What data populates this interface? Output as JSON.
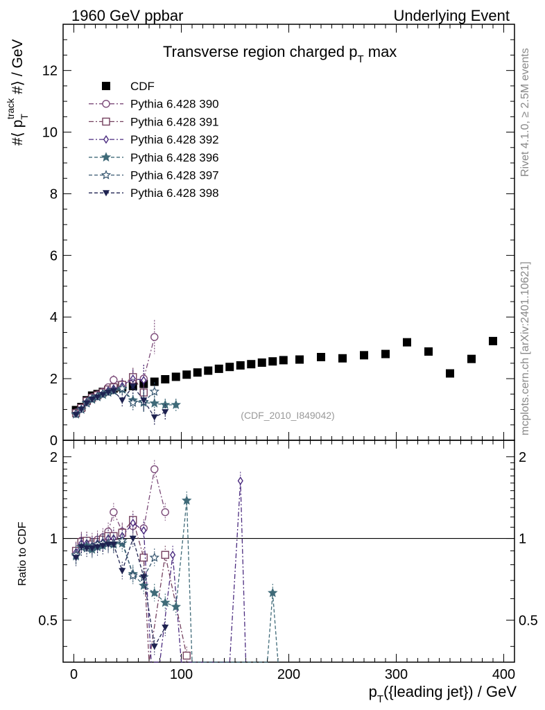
{
  "header": {
    "left": "1960 GeV ppbar",
    "right": "Underlying Event"
  },
  "side_text": {
    "rivet": "Rivet 4.1.0, ≥ 2.5M events",
    "mcplots": "mcplots.cern.ch [arXiv:2401.10621]"
  },
  "colors": {
    "cdf": "#000000",
    "p390": "#7b4a78",
    "p391": "#74405e",
    "p392": "#4a2a7e",
    "p396": "#3f6a78",
    "p397": "#34546e",
    "p398": "#1e2250"
  },
  "chart_data": {
    "type": "scatter",
    "title": "Transverse region charged p",
    "title_sub": "T",
    "title_tail": " max",
    "watermark": "(CDF_2010_I849042)",
    "xlabel": "p",
    "xlabel_sub": "T",
    "xlabel_tail": "({leading jet}) / GeV",
    "ylabel": "#⟨ p",
    "ylabel_sub": "T",
    "ylabel_sup": "track",
    "ylabel_tail": " #⟩ / GeV",
    "ratio_ylabel": "Ratio to CDF",
    "xlim": [
      -10,
      410
    ],
    "ylim": [
      0,
      13.5
    ],
    "ratio_ylim": [
      0.35,
      2.3
    ],
    "x_ticks": [
      0,
      100,
      200,
      300,
      400
    ],
    "y_ticks": [
      0,
      2,
      4,
      6,
      8,
      10,
      12
    ],
    "ratio_ticks": [
      0.5,
      1,
      2
    ],
    "series": [
      {
        "name": "CDF",
        "key": "cdf",
        "marker": "square",
        "line": "none",
        "x": [
          2,
          7,
          12,
          17,
          22,
          27,
          32,
          37,
          45,
          55,
          65,
          75,
          85,
          95,
          105,
          115,
          125,
          135,
          145,
          155,
          165,
          175,
          185,
          195,
          210,
          230,
          250,
          270,
          290,
          310,
          330,
          350,
          370,
          390
        ],
        "y": [
          0.98,
          1.08,
          1.3,
          1.45,
          1.5,
          1.57,
          1.62,
          1.68,
          1.72,
          1.76,
          1.83,
          1.9,
          1.98,
          2.06,
          2.13,
          2.2,
          2.26,
          2.32,
          2.38,
          2.43,
          2.47,
          2.52,
          2.56,
          2.6,
          2.62,
          2.7,
          2.66,
          2.76,
          2.8,
          3.18,
          2.88,
          2.17,
          2.64,
          3.22
        ]
      },
      {
        "name": "Pythia 6.428 390",
        "key": "p390",
        "marker": "circle-open",
        "line": "dashdot",
        "x": [
          2,
          7,
          12,
          17,
          22,
          27,
          32,
          37,
          45,
          55,
          65,
          75
        ],
        "y": [
          0.9,
          1.06,
          1.28,
          1.4,
          1.48,
          1.58,
          1.72,
          1.96,
          1.82,
          1.95,
          2.0,
          3.35
        ],
        "err": [
          0.05,
          0.05,
          0.06,
          0.06,
          0.07,
          0.08,
          0.1,
          0.15,
          0.2,
          0.3,
          0.45,
          0.55
        ]
      },
      {
        "name": "Pythia 6.428 391",
        "key": "p391",
        "marker": "square-open",
        "line": "dashdot",
        "x": [
          2,
          7,
          12,
          17,
          22,
          27,
          32,
          37,
          45,
          55,
          65
        ],
        "y": [
          0.88,
          1.05,
          1.27,
          1.38,
          1.46,
          1.55,
          1.65,
          1.72,
          1.8,
          2.05,
          1.55
        ],
        "err": [
          0.05,
          0.05,
          0.06,
          0.06,
          0.07,
          0.08,
          0.1,
          0.12,
          0.2,
          0.3,
          0.4
        ]
      },
      {
        "name": "Pythia 6.428 392",
        "key": "p392",
        "marker": "diamond-open",
        "line": "dashdot",
        "x": [
          2,
          7,
          12,
          17,
          22,
          27,
          32,
          37,
          45,
          55,
          65
        ],
        "y": [
          0.87,
          1.02,
          1.25,
          1.36,
          1.44,
          1.52,
          1.62,
          1.68,
          1.76,
          2.0,
          1.95
        ],
        "err": [
          0.05,
          0.05,
          0.06,
          0.06,
          0.07,
          0.08,
          0.1,
          0.12,
          0.2,
          0.3,
          0.5
        ]
      },
      {
        "name": "Pythia 6.428 396",
        "key": "p396",
        "marker": "star-filled",
        "line": "dashed",
        "x": [
          2,
          7,
          12,
          17,
          22,
          27,
          32,
          37,
          45,
          55,
          65,
          75,
          85,
          95
        ],
        "y": [
          0.84,
          1.0,
          1.22,
          1.32,
          1.4,
          1.48,
          1.55,
          1.6,
          1.65,
          1.3,
          1.22,
          1.2,
          1.15,
          1.15
        ],
        "err": [
          0.05,
          0.05,
          0.06,
          0.06,
          0.07,
          0.08,
          0.1,
          0.12,
          0.15,
          0.25,
          0.3,
          0.25,
          0.2,
          0.2
        ]
      },
      {
        "name": "Pythia 6.428 397",
        "key": "p397",
        "marker": "star-open",
        "line": "dashed",
        "x": [
          2,
          7,
          12,
          17,
          22,
          27,
          32,
          37,
          45,
          55,
          65,
          75
        ],
        "y": [
          0.85,
          1.0,
          1.2,
          1.35,
          1.42,
          1.5,
          1.56,
          1.62,
          1.68,
          1.22,
          1.25,
          1.58
        ],
        "err": [
          0.05,
          0.05,
          0.06,
          0.06,
          0.07,
          0.08,
          0.1,
          0.12,
          0.15,
          0.25,
          0.35,
          0.3
        ]
      },
      {
        "name": "Pythia 6.428 398",
        "key": "p398",
        "marker": "triangle-down",
        "line": "dashed",
        "x": [
          2,
          7,
          12,
          17,
          22,
          27,
          32,
          37,
          45,
          55,
          65,
          75,
          85
        ],
        "y": [
          0.83,
          1.0,
          1.2,
          1.33,
          1.4,
          1.48,
          1.55,
          1.6,
          1.3,
          1.75,
          1.3,
          0.75,
          0.92
        ],
        "err": [
          0.05,
          0.05,
          0.06,
          0.06,
          0.07,
          0.08,
          0.1,
          0.12,
          0.2,
          0.25,
          0.35,
          0.25,
          0.25
        ]
      }
    ],
    "ratio_series": [
      {
        "key": "p390",
        "x": [
          2,
          7,
          12,
          17,
          22,
          27,
          32,
          37,
          45,
          55,
          65,
          75,
          85
        ],
        "y": [
          0.9,
          0.98,
          0.98,
          0.97,
          0.99,
          1.01,
          1.06,
          1.25,
          1.06,
          1.11,
          1.09,
          1.8,
          1.25
        ]
      },
      {
        "key": "p391",
        "x": [
          2,
          7,
          12,
          17,
          22,
          27,
          32,
          37,
          45,
          55,
          65,
          70,
          85,
          105
        ],
        "y": [
          0.9,
          0.97,
          0.98,
          0.95,
          0.97,
          0.99,
          1.02,
          1.02,
          1.05,
          1.17,
          0.85,
          0.35,
          0.87,
          0.37
        ]
      },
      {
        "key": "p392",
        "x": [
          2,
          7,
          12,
          17,
          22,
          27,
          32,
          37,
          45,
          55,
          65,
          72,
          80,
          92,
          100,
          105,
          145,
          155,
          160
        ],
        "y": [
          0.89,
          0.96,
          0.96,
          0.94,
          0.96,
          0.97,
          1.0,
          1.0,
          1.02,
          1.14,
          1.07,
          0.35,
          0.35,
          0.87,
          0.35,
          0.35,
          0.35,
          1.63,
          0.35
        ]
      },
      {
        "key": "p396",
        "x": [
          2,
          7,
          12,
          17,
          22,
          27,
          32,
          37,
          45,
          55,
          65,
          75,
          85,
          95,
          105,
          110,
          180,
          185,
          190
        ],
        "y": [
          0.86,
          0.93,
          0.94,
          0.91,
          0.93,
          0.94,
          0.96,
          0.95,
          0.96,
          0.74,
          0.67,
          0.63,
          0.58,
          0.56,
          1.38,
          0.35,
          0.35,
          0.63,
          0.35
        ]
      },
      {
        "key": "p397",
        "x": [
          2,
          7,
          12,
          17,
          22,
          27,
          32,
          37,
          45,
          55,
          65,
          75
        ],
        "y": [
          0.87,
          0.93,
          0.92,
          0.93,
          0.95,
          0.96,
          0.96,
          0.96,
          0.98,
          0.73,
          0.72,
          0.85
        ]
      },
      {
        "key": "p398",
        "x": [
          2,
          7,
          12,
          17,
          22,
          27,
          32,
          37,
          45,
          55,
          65,
          75,
          85
        ],
        "y": [
          0.85,
          0.93,
          0.92,
          0.92,
          0.93,
          0.94,
          0.95,
          0.95,
          0.76,
          1.0,
          0.72,
          0.4,
          0.47
        ]
      }
    ]
  }
}
